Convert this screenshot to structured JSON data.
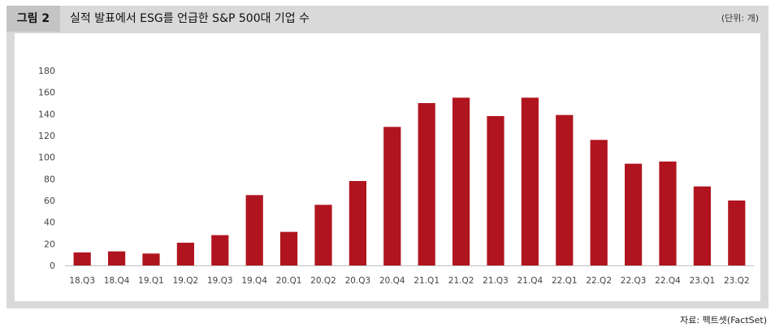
{
  "figure": {
    "label": "그림 2",
    "title": "실적 발표에서 ESG를 언급한 S&P 500대 기업 수",
    "unit": "(단위: 개)",
    "source": "자료: 팩트셋(FactSet)"
  },
  "chart_data": {
    "type": "bar",
    "title": "실적 발표에서 ESG를 언급한 S&P 500대 기업 수",
    "xlabel": "",
    "ylabel": "",
    "ylim": [
      0,
      180
    ],
    "yticks": [
      0,
      20,
      40,
      60,
      80,
      100,
      120,
      140,
      160,
      180
    ],
    "grid": false,
    "legend": "none",
    "bar_color": "#b0151f",
    "categories": [
      "18.Q3",
      "18.Q4",
      "19.Q1",
      "19.Q2",
      "19.Q3",
      "19.Q4",
      "20.Q1",
      "20.Q2",
      "20.Q3",
      "20.Q4",
      "21.Q1",
      "21.Q2",
      "21.Q3",
      "21.Q4",
      "22.Q1",
      "22.Q2",
      "22.Q3",
      "22.Q4",
      "23.Q1",
      "23.Q2"
    ],
    "values": [
      12,
      13,
      11,
      21,
      28,
      65,
      31,
      56,
      78,
      128,
      150,
      155,
      138,
      155,
      139,
      116,
      94,
      96,
      73,
      60
    ]
  }
}
